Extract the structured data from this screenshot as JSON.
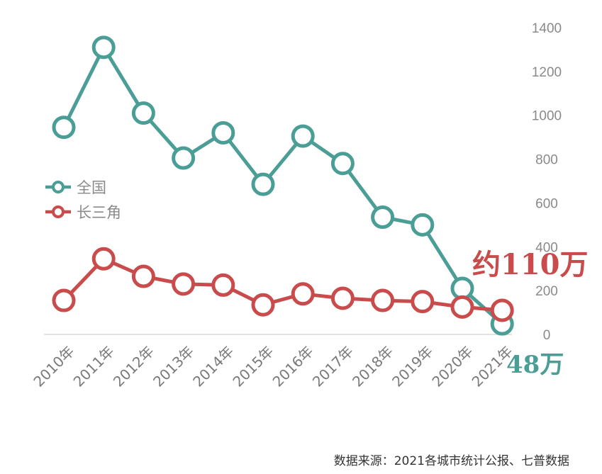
{
  "chart_data": {
    "type": "line",
    "categories": [
      "2010年",
      "2011年",
      "2012年",
      "2013年",
      "2014年",
      "2015年",
      "2016年",
      "2017年",
      "2018年",
      "2019年",
      "2020年",
      "2021年"
    ],
    "series": [
      {
        "name": "全国",
        "color": "#4a9e96",
        "values": [
          945,
          1310,
          1010,
          805,
          920,
          685,
          905,
          780,
          535,
          500,
          210,
          48
        ]
      },
      {
        "name": "长三角",
        "color": "#c94b4b",
        "values": [
          155,
          345,
          265,
          230,
          225,
          135,
          185,
          165,
          155,
          150,
          125,
          110
        ]
      }
    ],
    "yticks": [
      0,
      200,
      400,
      600,
      800,
      1000,
      1200,
      1400
    ],
    "ylim": [
      0,
      1400
    ],
    "legend_position": "left",
    "annotations": [
      {
        "text": "约110万",
        "series": "长三角",
        "color": "#c94b4b"
      },
      {
        "text": "48万",
        "series": "全国",
        "color": "#4a9e96"
      }
    ],
    "source": "数据来源：2021各城市统计公报、七普数据"
  }
}
